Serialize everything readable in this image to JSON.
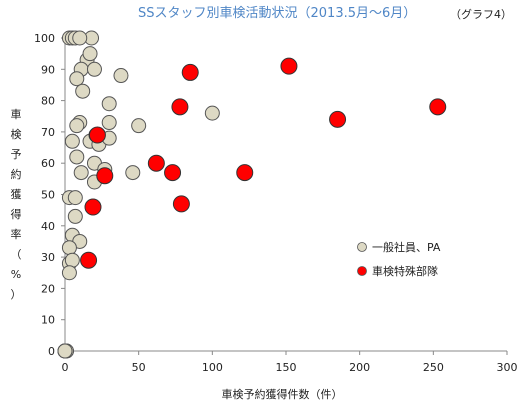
{
  "chart_data": {
    "type": "scatter",
    "title": "SSスタッフ別車検活動状況（2013.5月～6月）",
    "tag": "（グラフ4）",
    "xlabel": "車検予約獲得件数（件）",
    "ylabel": [
      "車",
      "検",
      "予",
      "約",
      "獲",
      "得",
      "率",
      "（",
      "%",
      "）"
    ],
    "xlim": [
      0,
      300
    ],
    "ylim": [
      0,
      100
    ],
    "x_ticks": [
      "0",
      "50",
      "100",
      "150",
      "200",
      "250",
      "300"
    ],
    "y_ticks": [
      "0",
      "10",
      "20",
      "30",
      "40",
      "50",
      "60",
      "70",
      "80",
      "90",
      "100"
    ],
    "grid": false,
    "legend_position": "right",
    "series": [
      {
        "name": "一般社員、PA",
        "color": "#ddd9c4",
        "points": [
          [
            0,
            0
          ],
          [
            0,
            0
          ],
          [
            0,
            0
          ],
          [
            0,
            0
          ],
          [
            1,
            0
          ],
          [
            1,
            0
          ],
          [
            0,
            0
          ],
          [
            0,
            0
          ],
          [
            3,
            100
          ],
          [
            5,
            100
          ],
          [
            7,
            100
          ],
          [
            18,
            100
          ],
          [
            10,
            100
          ],
          [
            15,
            93
          ],
          [
            17,
            95
          ],
          [
            11,
            90
          ],
          [
            20,
            90
          ],
          [
            8,
            87
          ],
          [
            38,
            88
          ],
          [
            12,
            83
          ],
          [
            30,
            79
          ],
          [
            100,
            76
          ],
          [
            10,
            73
          ],
          [
            8,
            72
          ],
          [
            50,
            72
          ],
          [
            30,
            73
          ],
          [
            5,
            67
          ],
          [
            17,
            67
          ],
          [
            21,
            69
          ],
          [
            23,
            66
          ],
          [
            30,
            68
          ],
          [
            8,
            62
          ],
          [
            20,
            60
          ],
          [
            11,
            57
          ],
          [
            27,
            58
          ],
          [
            46,
            57
          ],
          [
            20,
            54
          ],
          [
            3,
            49
          ],
          [
            7,
            49
          ],
          [
            7,
            43
          ],
          [
            5,
            37
          ],
          [
            10,
            35
          ],
          [
            3,
            33
          ],
          [
            3,
            28
          ],
          [
            5,
            29
          ],
          [
            3,
            25
          ]
        ]
      },
      {
        "name": "車検特殊部隊",
        "color": "#ff0000",
        "points": [
          [
            85,
            89
          ],
          [
            152,
            91
          ],
          [
            78,
            78
          ],
          [
            253,
            78
          ],
          [
            185,
            74
          ],
          [
            22,
            69
          ],
          [
            62,
            60
          ],
          [
            73,
            57
          ],
          [
            122,
            57
          ],
          [
            27,
            56
          ],
          [
            79,
            47
          ],
          [
            19,
            46
          ],
          [
            16,
            29
          ]
        ]
      }
    ]
  }
}
